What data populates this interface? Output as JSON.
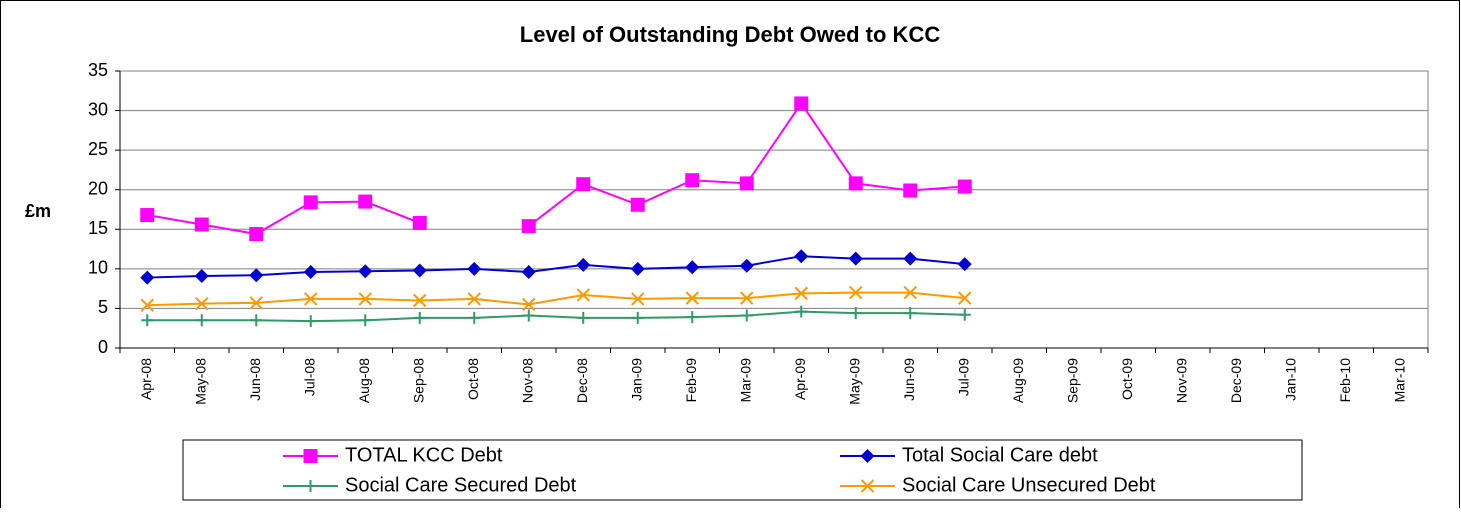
{
  "chart_data": {
    "type": "line",
    "title": "Level of Outstanding Debt Owed to KCC",
    "y_label": "£m",
    "categories": [
      "Apr-08",
      "May-08",
      "Jun-08",
      "Jul-08",
      "Aug-08",
      "Sep-08",
      "Oct-08",
      "Nov-08",
      "Dec-08",
      "Jan-09",
      "Feb-09",
      "Mar-09",
      "Apr-09",
      "May-09",
      "Jun-09",
      "Jul-09",
      "Aug-09",
      "Sep-09",
      "Oct-09",
      "Nov-09",
      "Dec-09",
      "Jan-10",
      "Feb-10",
      "Mar-10"
    ],
    "series": [
      {
        "name": "TOTAL KCC Debt",
        "color": "#ff00ff",
        "marker": "square",
        "values": [
          16.8,
          15.6,
          14.4,
          18.4,
          18.5,
          15.8,
          null,
          15.4,
          20.7,
          18.1,
          21.2,
          20.8,
          30.9,
          20.8,
          19.9,
          20.4,
          null,
          null,
          null,
          null,
          null,
          null,
          null,
          null
        ]
      },
      {
        "name": "Total Social Care debt",
        "color": "#0000cc",
        "marker": "diamond",
        "values": [
          8.9,
          9.1,
          9.2,
          9.6,
          9.7,
          9.8,
          10.0,
          9.6,
          10.5,
          10.0,
          10.2,
          10.4,
          11.6,
          11.3,
          11.3,
          10.6,
          null,
          null,
          null,
          null,
          null,
          null,
          null,
          null
        ]
      },
      {
        "name": "Social Care Secured Debt",
        "color": "#339966",
        "marker": "plus",
        "values": [
          3.5,
          3.5,
          3.5,
          3.4,
          3.5,
          3.8,
          3.8,
          4.1,
          3.8,
          3.8,
          3.9,
          4.1,
          4.6,
          4.4,
          4.4,
          4.2,
          null,
          null,
          null,
          null,
          null,
          null,
          null,
          null
        ]
      },
      {
        "name": "Social Care Unsecured Debt",
        "color": "#ff9900",
        "marker": "x",
        "values": [
          5.4,
          5.6,
          5.7,
          6.2,
          6.2,
          6.0,
          6.2,
          5.5,
          6.7,
          6.2,
          6.3,
          6.3,
          6.9,
          7.0,
          7.0,
          6.3,
          null,
          null,
          null,
          null,
          null,
          null,
          null,
          null
        ]
      }
    ],
    "ylim": [
      0,
      35
    ],
    "yticks": [
      0,
      5,
      10,
      15,
      20,
      25,
      30,
      35
    ],
    "grid": true
  }
}
